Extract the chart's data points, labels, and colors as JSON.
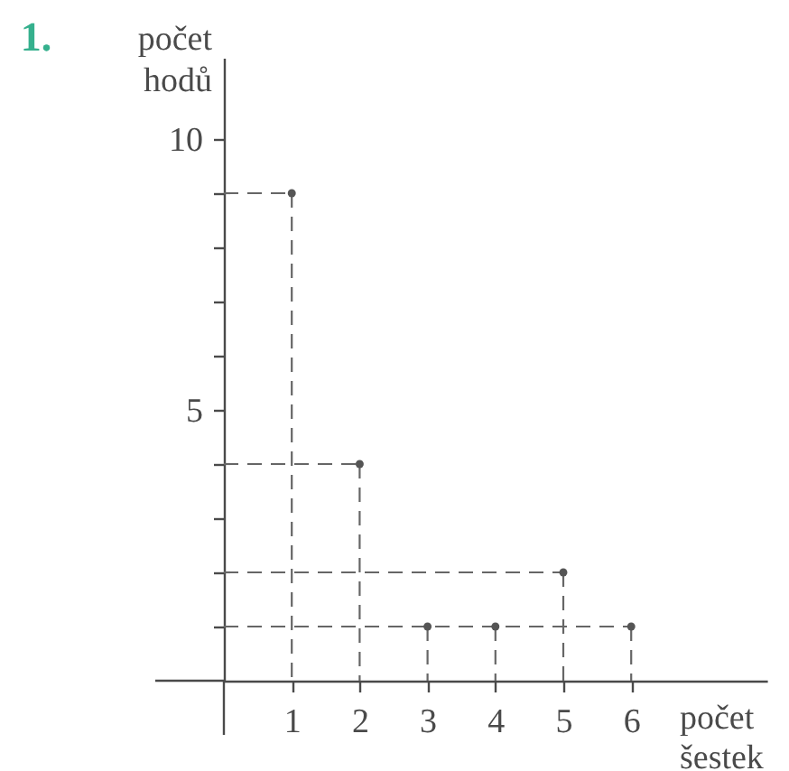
{
  "chart_data": {
    "type": "lollipop",
    "annotations": [
      "1."
    ],
    "ylabel": "počet hodů",
    "xlabel": "počet šestek",
    "x": [
      1,
      2,
      3,
      4,
      5,
      6
    ],
    "series": [
      {
        "color": "#555555",
        "values": [
          9,
          4,
          1,
          1,
          2,
          1
        ]
      },
      {
        "type": "line",
        "marker": "none",
        "color": "#666666",
        "x": [
          0,
          1
        ],
        "values": [
          9,
          9
        ]
      },
      {
        "type": "line",
        "marker": "none",
        "color": "#666666",
        "x": [
          0,
          2
        ],
        "values": [
          4,
          4
        ]
      },
      {
        "type": "line",
        "marker": "none",
        "color": "#666666",
        "x": [
          0,
          5
        ],
        "values": [
          2,
          2
        ]
      },
      {
        "type": "line",
        "marker": "none",
        "color": "#666666",
        "x": [
          0,
          6
        ],
        "values": [
          1,
          1
        ]
      }
    ],
    "xlim": [
      0,
      8
    ],
    "ylim": [
      0,
      11.5
    ],
    "xticks": [
      1,
      2,
      3,
      4,
      5,
      6
    ],
    "yticks": [
      {
        "value": 1,
        "label": null
      },
      {
        "value": 2,
        "label": null
      },
      {
        "value": 3,
        "label": null
      },
      {
        "value": 4,
        "label": null
      },
      5,
      {
        "value": 6,
        "label": null
      },
      {
        "value": 7,
        "label": null
      },
      {
        "value": 8,
        "label": null
      },
      {
        "value": 9,
        "label": null
      },
      10
    ],
    "marker": "circle",
    "line_style": "dashed"
  }
}
